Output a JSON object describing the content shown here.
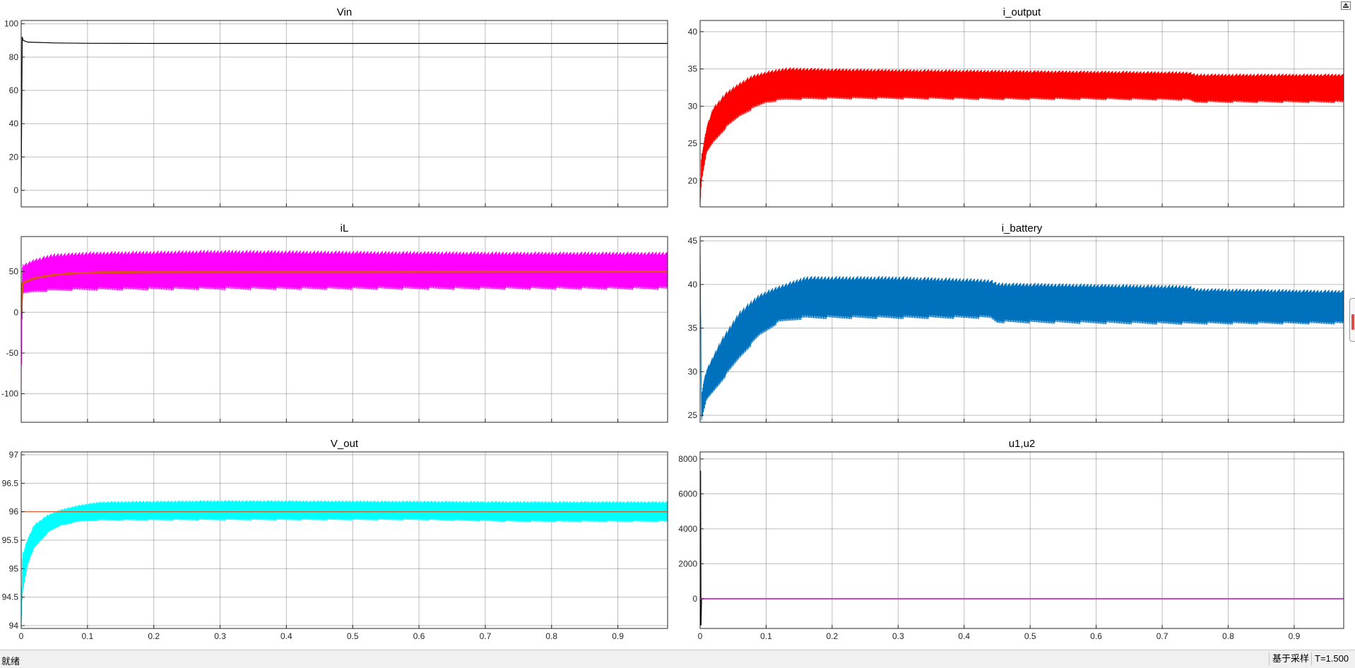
{
  "status_bar": {
    "state": "就绪",
    "mode": "基于采样",
    "time": "T=1.500"
  },
  "colors": {
    "vin": "#000000",
    "i_output": "#ff0000",
    "iL": "#ff00ff",
    "iL_avg": "#d95319",
    "i_battery": "#0072bd",
    "v_out": "#00ffff",
    "v_ref": "#d95319",
    "u1": "#000000",
    "u2": "#cc44cc"
  },
  "icons": {
    "restore": "restore-icon",
    "side_handle": "scroll-handle-icon"
  },
  "chart_data": [
    {
      "type": "line",
      "title": "Vin",
      "xlim": [
        0,
        0.975
      ],
      "ylim": [
        -10,
        102
      ],
      "xticks": [
        0,
        0.1,
        0.2,
        0.3,
        0.4,
        0.5,
        0.6,
        0.7,
        0.8,
        0.9
      ],
      "show_xtick_labels": false,
      "yticks": [
        0,
        20,
        40,
        60,
        80,
        100
      ],
      "ytick_labels": [
        "0",
        "20",
        "40",
        "60",
        "80",
        "100"
      ],
      "grid": true,
      "series": [
        {
          "color": "#000000",
          "x": [
            0,
            0.0015,
            0.003,
            0.01,
            0.05,
            0.1,
            0.2,
            0.5,
            0.975
          ],
          "y": [
            0,
            92,
            90,
            89,
            88.5,
            88.3,
            88.2,
            88.2,
            88.2
          ]
        }
      ]
    },
    {
      "type": "line",
      "title": "i_output",
      "xlim": [
        0,
        0.975
      ],
      "ylim": [
        16.5,
        41.5
      ],
      "xticks": [
        0,
        0.1,
        0.2,
        0.3,
        0.4,
        0.5,
        0.6,
        0.7,
        0.8,
        0.9
      ],
      "show_xtick_labels": false,
      "yticks": [
        20,
        25,
        30,
        35,
        40
      ],
      "ytick_labels": [
        "20",
        "25",
        "30",
        "35",
        "40"
      ],
      "grid": true,
      "series": [
        {
          "color": "#ff0000",
          "band": true,
          "x": [
            0,
            0.002,
            0.01,
            0.02,
            0.04,
            0.06,
            0.08,
            0.1,
            0.13,
            0.2,
            0.3,
            0.45,
            0.6,
            0.74,
            0.75,
            0.9,
            0.975
          ],
          "low": [
            16.5,
            20,
            24,
            25.5,
            27.5,
            29,
            30,
            30.8,
            31.2,
            31.3,
            31.3,
            31.2,
            31.2,
            31.1,
            30.8,
            30.8,
            30.8
          ],
          "high": [
            16.5,
            23,
            27,
            29.5,
            31.5,
            32.8,
            33.8,
            34.3,
            34.8,
            34.7,
            34.6,
            34.5,
            34.4,
            34.3,
            34.0,
            34.0,
            34.0
          ]
        }
      ]
    },
    {
      "type": "line",
      "title": "iL",
      "xlim": [
        0,
        0.975
      ],
      "ylim": [
        -135,
        93
      ],
      "xticks": [
        0,
        0.1,
        0.2,
        0.3,
        0.4,
        0.5,
        0.6,
        0.7,
        0.8,
        0.9
      ],
      "show_xtick_labels": false,
      "yticks": [
        -100,
        -50,
        0,
        50
      ],
      "ytick_labels": [
        "-100",
        "-50",
        "0",
        "50"
      ],
      "grid": true,
      "series": [
        {
          "color": "#ff00ff",
          "band": true,
          "x": [
            0,
            0.002,
            0.02,
            0.05,
            0.1,
            0.3,
            0.5,
            0.75,
            0.975
          ],
          "low": [
            -110,
            25,
            28,
            30,
            31,
            32,
            32,
            32,
            32
          ],
          "high": [
            0,
            55,
            62,
            68,
            70,
            72,
            71,
            70,
            70
          ]
        },
        {
          "color": "#d95319",
          "width": 3,
          "x": [
            0,
            0.002,
            0.02,
            0.05,
            0.08,
            0.12,
            0.2,
            0.975
          ],
          "y": [
            0,
            36,
            42,
            46,
            48,
            49,
            49.5,
            50
          ]
        }
      ]
    },
    {
      "type": "line",
      "title": "i_battery",
      "xlim": [
        0,
        0.975
      ],
      "ylim": [
        24.2,
        45.5
      ],
      "xticks": [
        0,
        0.1,
        0.2,
        0.3,
        0.4,
        0.5,
        0.6,
        0.7,
        0.8,
        0.9
      ],
      "show_xtick_labels": false,
      "yticks": [
        25,
        30,
        35,
        40,
        45
      ],
      "ytick_labels": [
        "25",
        "30",
        "35",
        "40",
        "45"
      ],
      "grid": true,
      "series": [
        {
          "color": "#0072bd",
          "band": true,
          "x": [
            0,
            0.002,
            0.005,
            0.01,
            0.03,
            0.06,
            0.09,
            0.12,
            0.16,
            0.3,
            0.44,
            0.45,
            0.74,
            0.75,
            0.975
          ],
          "low": [
            45,
            24.5,
            25.5,
            27,
            29,
            32,
            34.5,
            36,
            36.5,
            36.5,
            36.5,
            36,
            35.8,
            35.8,
            35.8
          ],
          "high": [
            45,
            27,
            28.5,
            30,
            33,
            36.5,
            38.5,
            39.5,
            40.5,
            40.5,
            40.2,
            39.8,
            39.5,
            39.2,
            39.0
          ]
        }
      ]
    },
    {
      "type": "line",
      "title": "V_out",
      "xlim": [
        0,
        0.975
      ],
      "ylim": [
        93.95,
        97.05
      ],
      "xticks": [
        0,
        0.1,
        0.2,
        0.3,
        0.4,
        0.5,
        0.6,
        0.7,
        0.8,
        0.9
      ],
      "xtick_labels": [
        "0",
        "0.1",
        "0.2",
        "0.3",
        "0.4",
        "0.5",
        "0.6",
        "0.7",
        "0.8",
        "0.9"
      ],
      "show_xtick_labels": true,
      "yticks": [
        94,
        94.5,
        95,
        95.5,
        96,
        96.5,
        97
      ],
      "ytick_labels": [
        "94",
        "94.5",
        "95",
        "95.5",
        "96",
        "96.5",
        "97"
      ],
      "grid": true,
      "series": [
        {
          "color": "#00ffff",
          "band": true,
          "x": [
            0,
            0.002,
            0.01,
            0.02,
            0.04,
            0.06,
            0.09,
            0.12,
            0.3,
            0.6,
            0.75,
            0.975
          ],
          "low": [
            93.95,
            94.6,
            95.1,
            95.4,
            95.65,
            95.78,
            95.85,
            95.87,
            95.88,
            95.88,
            95.85,
            95.85
          ],
          "high": [
            93.95,
            95.2,
            95.5,
            95.75,
            95.92,
            96.02,
            96.1,
            96.15,
            96.17,
            96.16,
            96.15,
            96.15
          ]
        },
        {
          "color": "#d95319",
          "width": 1.2,
          "x": [
            0,
            0.975
          ],
          "y": [
            96,
            96
          ]
        }
      ]
    },
    {
      "type": "line",
      "title": "u1,u2",
      "xlim": [
        0,
        0.975
      ],
      "ylim": [
        -1700,
        8400
      ],
      "xticks": [
        0,
        0.1,
        0.2,
        0.3,
        0.4,
        0.5,
        0.6,
        0.7,
        0.8,
        0.9
      ],
      "xtick_labels": [
        "0",
        "0.1",
        "0.2",
        "0.3",
        "0.4",
        "0.5",
        "0.6",
        "0.7",
        "0.8",
        "0.9"
      ],
      "show_xtick_labels": true,
      "yticks": [
        0,
        2000,
        4000,
        6000,
        8000
      ],
      "ytick_labels": [
        "0",
        "2000",
        "4000",
        "6000",
        "8000"
      ],
      "grid": true,
      "series": [
        {
          "color": "#000000",
          "width": 1.5,
          "x": [
            0,
            0.0006,
            0.0012,
            0.002,
            0.975
          ],
          "y": [
            7300,
            7300,
            -1500,
            0,
            0
          ]
        },
        {
          "color": "#cc44cc",
          "width": 2,
          "x": [
            0,
            0.975
          ],
          "y": [
            0,
            0
          ]
        }
      ]
    }
  ]
}
